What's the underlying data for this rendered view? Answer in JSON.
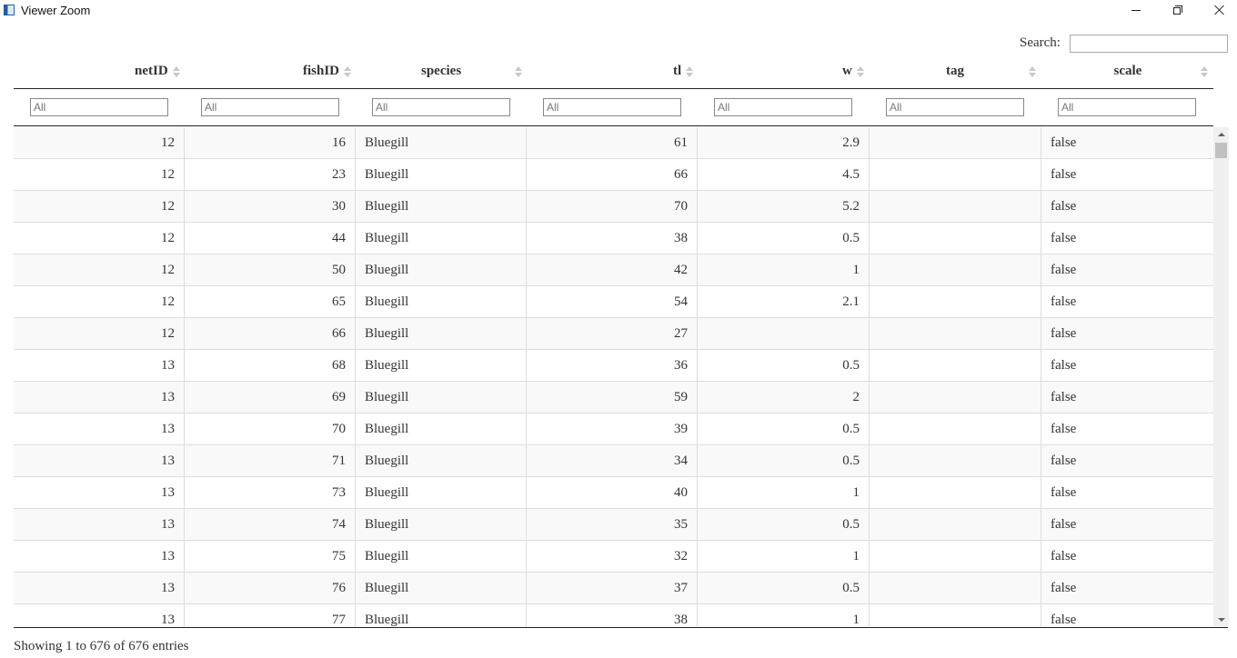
{
  "window": {
    "title": "Viewer Zoom",
    "icon": "app-window-icon",
    "controls": [
      "minimize-icon",
      "maximize-icon",
      "close-icon"
    ]
  },
  "search": {
    "label": "Search:",
    "value": ""
  },
  "columns": [
    "netID",
    "fishID",
    "species",
    "tl",
    "w",
    "tag",
    "scale"
  ],
  "filters": {
    "placeholder": "All"
  },
  "rows": [
    [
      "12",
      "16",
      "Bluegill",
      "61",
      "2.9",
      "",
      "false"
    ],
    [
      "12",
      "23",
      "Bluegill",
      "66",
      "4.5",
      "",
      "false"
    ],
    [
      "12",
      "30",
      "Bluegill",
      "70",
      "5.2",
      "",
      "false"
    ],
    [
      "12",
      "44",
      "Bluegill",
      "38",
      "0.5",
      "",
      "false"
    ],
    [
      "12",
      "50",
      "Bluegill",
      "42",
      "1",
      "",
      "false"
    ],
    [
      "12",
      "65",
      "Bluegill",
      "54",
      "2.1",
      "",
      "false"
    ],
    [
      "12",
      "66",
      "Bluegill",
      "27",
      "",
      "",
      "false"
    ],
    [
      "13",
      "68",
      "Bluegill",
      "36",
      "0.5",
      "",
      "false"
    ],
    [
      "13",
      "69",
      "Bluegill",
      "59",
      "2",
      "",
      "false"
    ],
    [
      "13",
      "70",
      "Bluegill",
      "39",
      "0.5",
      "",
      "false"
    ],
    [
      "13",
      "71",
      "Bluegill",
      "34",
      "0.5",
      "",
      "false"
    ],
    [
      "13",
      "73",
      "Bluegill",
      "40",
      "1",
      "",
      "false"
    ],
    [
      "13",
      "74",
      "Bluegill",
      "35",
      "0.5",
      "",
      "false"
    ],
    [
      "13",
      "75",
      "Bluegill",
      "32",
      "1",
      "",
      "false"
    ],
    [
      "13",
      "76",
      "Bluegill",
      "37",
      "0.5",
      "",
      "false"
    ],
    [
      "13",
      "77",
      "Bluegill",
      "38",
      "1",
      "",
      "false"
    ]
  ],
  "info": "Showing 1 to 676 of 676 entries"
}
